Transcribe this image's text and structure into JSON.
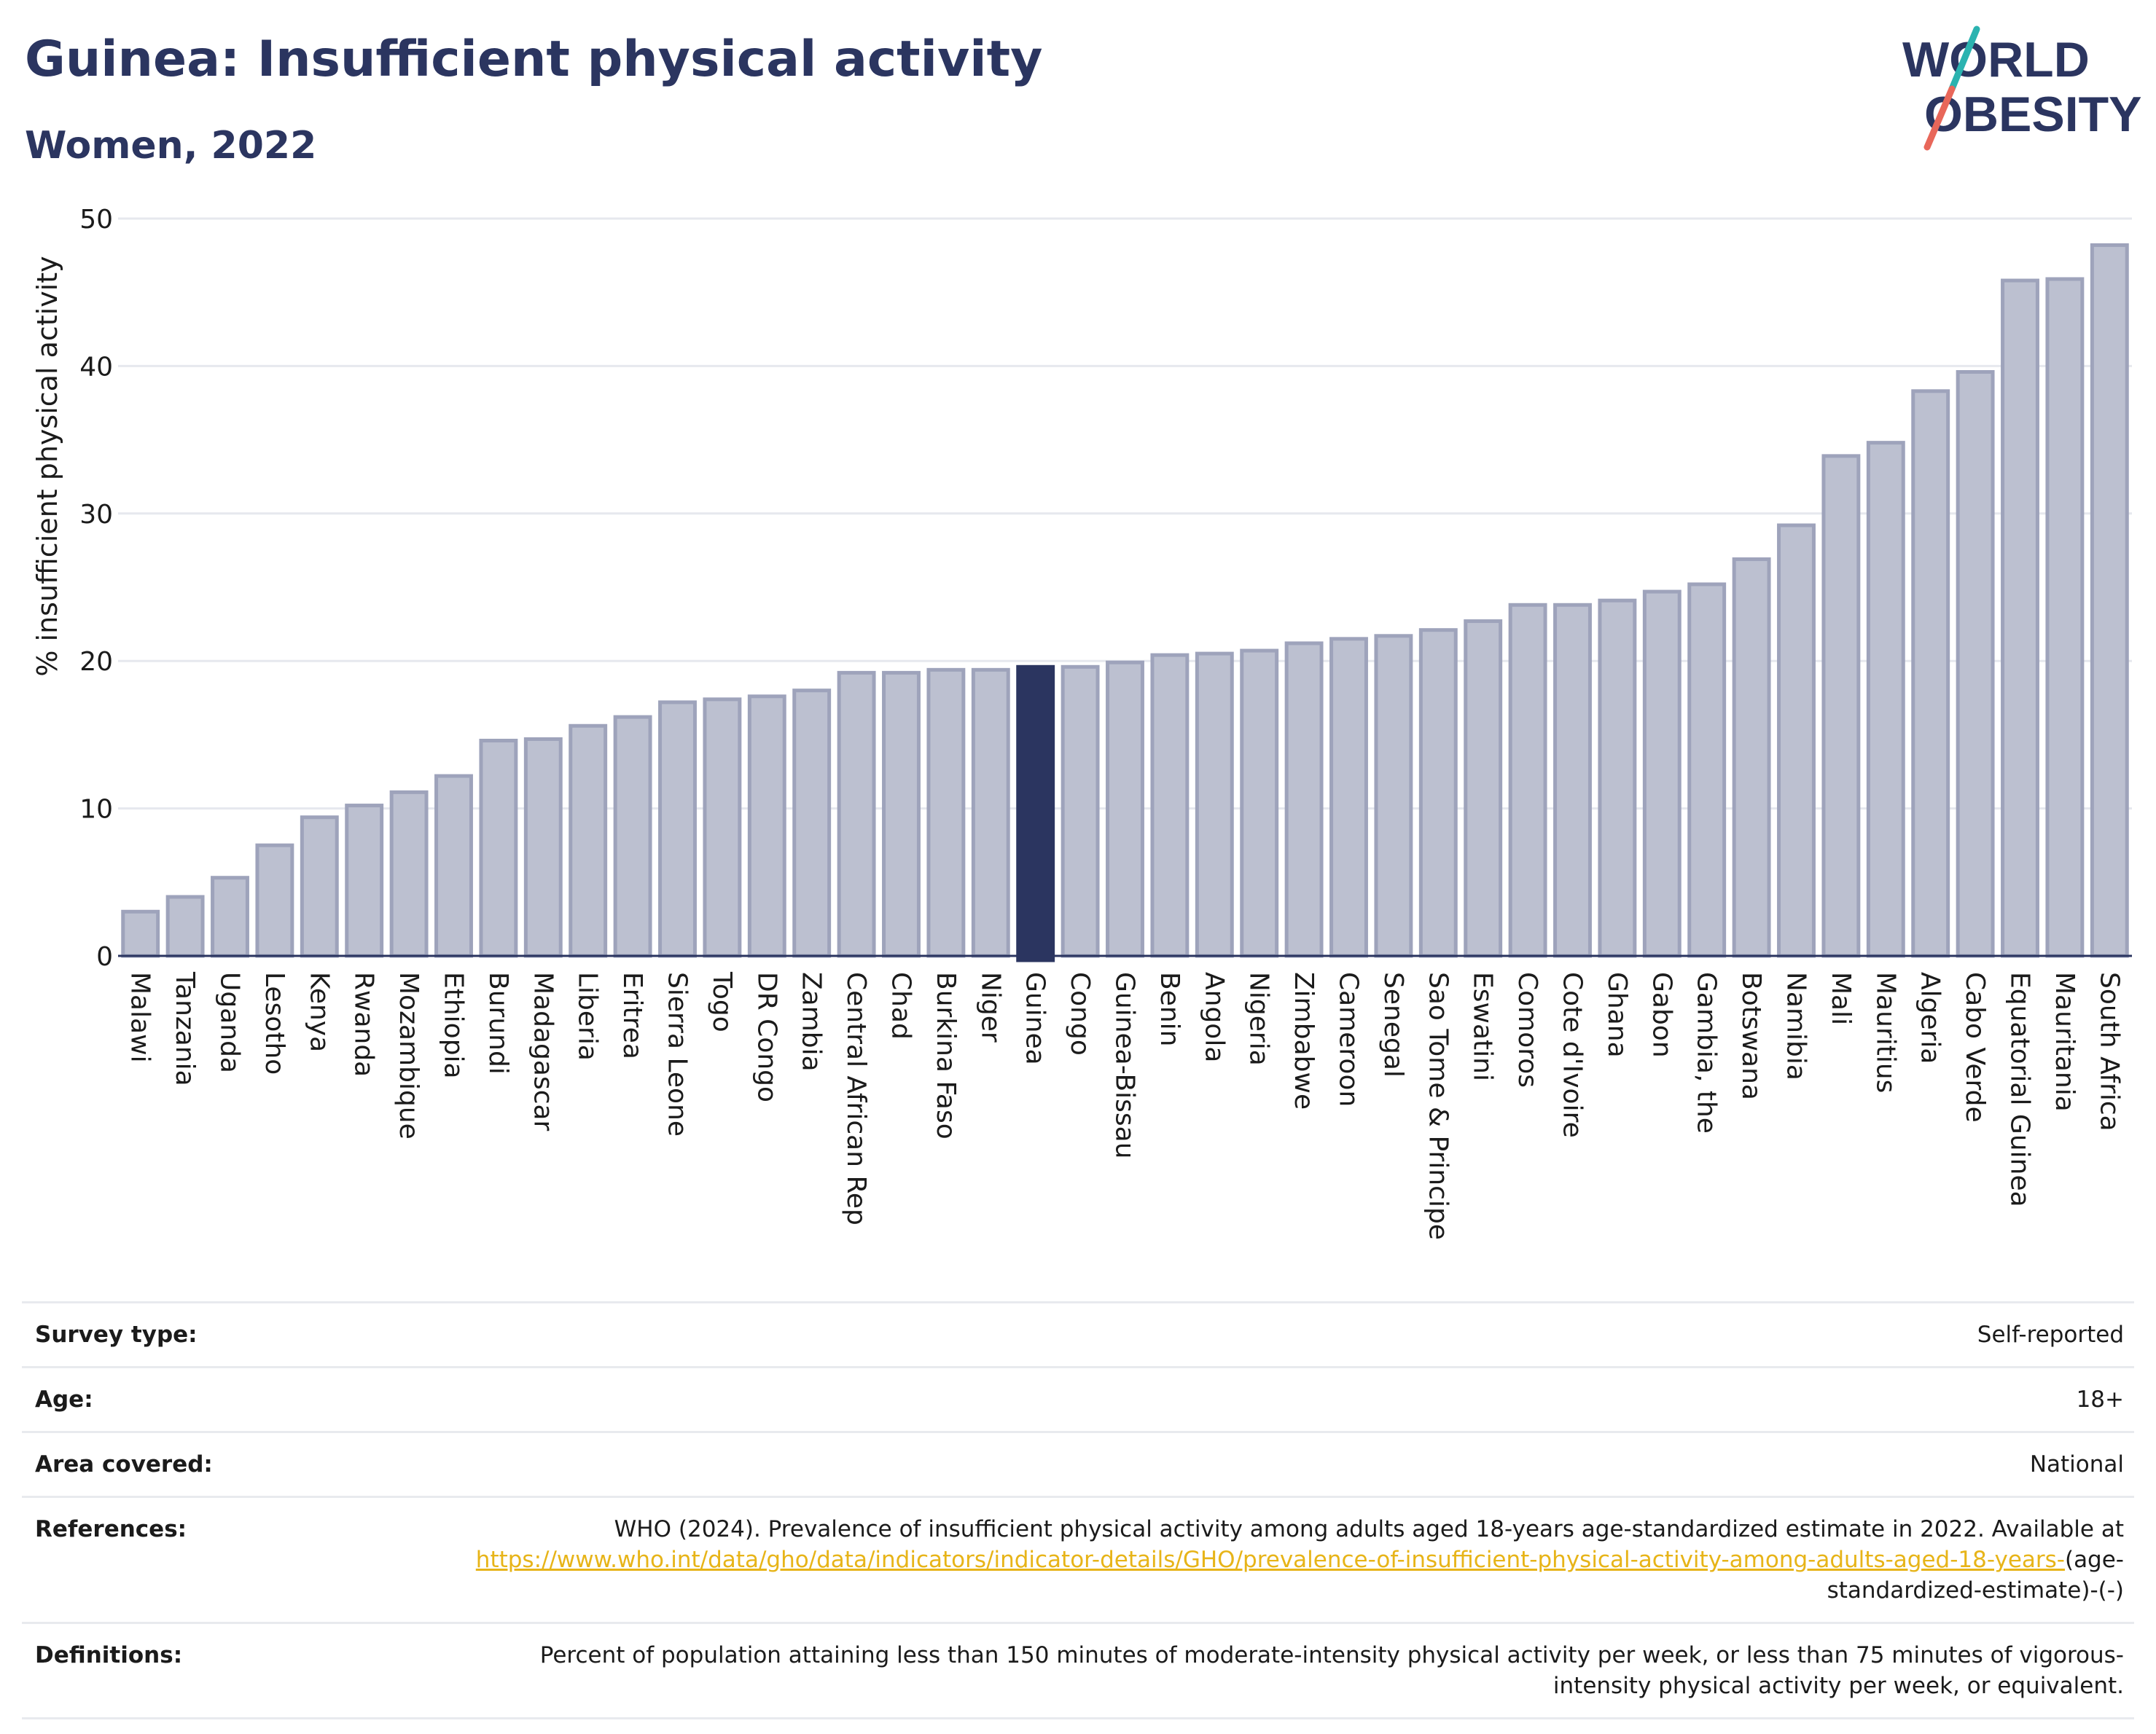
{
  "header": {
    "title": "Guinea: Insufficient physical activity",
    "subtitle": "Women, 2022"
  },
  "logo": {
    "line1": "WORLD",
    "line2": "OBESITY",
    "text_color": "#2b3560",
    "slash_teal": "#2bb3b0",
    "slash_red": "#e8675a"
  },
  "colors": {
    "bar": "#bcc0d0",
    "bar_stroke": "#9ea3bb",
    "highlight": "#2b3560",
    "grid": "#e6e8ee",
    "axis": "#2b3560"
  },
  "chart_data": {
    "type": "bar",
    "ylabel": "% insufficient physical activity",
    "ylim": [
      0,
      50
    ],
    "yticks": [
      0,
      10,
      20,
      30,
      40,
      50
    ],
    "grid": true,
    "highlight": "Guinea",
    "categories": [
      "Malawi",
      "Tanzania",
      "Uganda",
      "Lesotho",
      "Kenya",
      "Rwanda",
      "Mozambique",
      "Ethiopia",
      "Burundi",
      "Madagascar",
      "Liberia",
      "Eritrea",
      "Sierra Leone",
      "Togo",
      "DR Congo",
      "Zambia",
      "Central African Rep",
      "Chad",
      "Burkina Faso",
      "Niger",
      "Guinea",
      "Congo",
      "Guinea-Bissau",
      "Benin",
      "Angola",
      "Nigeria",
      "Zimbabwe",
      "Cameroon",
      "Senegal",
      "Sao Tome & Principe",
      "Eswatini",
      "Comoros",
      "Cote d'Ivoire",
      "Ghana",
      "Gabon",
      "Gambia, the",
      "Botswana",
      "Namibia",
      "Mali",
      "Mauritius",
      "Algeria",
      "Cabo Verde",
      "Equatorial Guinea",
      "Mauritania",
      "South Africa"
    ],
    "values": [
      3.0,
      4.0,
      5.3,
      7.5,
      9.4,
      10.2,
      11.1,
      12.2,
      14.6,
      14.7,
      15.6,
      16.2,
      17.2,
      17.4,
      17.6,
      18.0,
      19.2,
      19.2,
      19.4,
      19.4,
      19.6,
      19.6,
      19.9,
      20.4,
      20.5,
      20.7,
      21.2,
      21.5,
      21.7,
      22.1,
      22.7,
      23.8,
      23.8,
      24.1,
      24.7,
      25.2,
      26.9,
      29.2,
      33.9,
      34.8,
      38.3,
      39.6,
      45.8,
      45.9,
      48.2
    ]
  },
  "meta": [
    {
      "key": "Survey type:",
      "value": "Self-reported"
    },
    {
      "key": "Age:",
      "value": "18+"
    },
    {
      "key": "Area covered:",
      "value": "National"
    },
    {
      "key": "References:",
      "value_pre": "WHO (2024). Prevalence of insufficient physical activity among adults aged 18-years age-standardized estimate in 2022. Available at",
      "link": "https://www.who.int/data/gho/data/indicators/indicator-details/GHO/prevalence-of-insufficient-physical-activity-among-adults-aged-18-years-",
      "value_post": "(age-standardized-estimate)-(-)"
    },
    {
      "key": "Definitions:",
      "value": "Percent of population attaining less than 150 minutes of moderate-intensity physical activity per week, or less than 75 minutes of vigorous-intensity physical activity per week, or equivalent."
    }
  ]
}
